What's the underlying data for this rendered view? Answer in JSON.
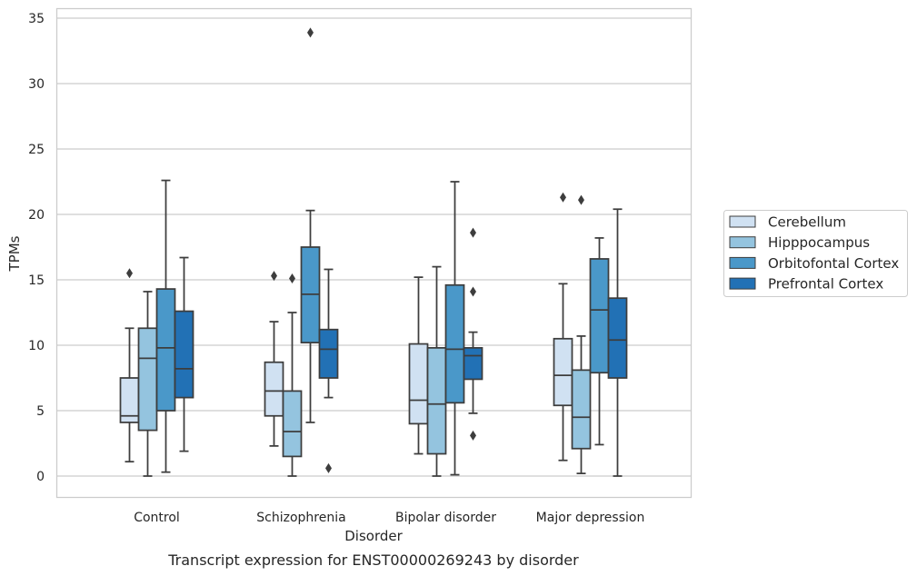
{
  "chart_data": {
    "type": "box",
    "title": "",
    "caption": "Transcript expression for ENST00000269243 by disorder",
    "xlabel": "Disorder",
    "ylabel": "TPMs",
    "ylim": [
      -1.6,
      35.7
    ],
    "yticks": [
      0,
      5,
      10,
      15,
      20,
      25,
      30,
      35
    ],
    "grid": "horizontal",
    "legend_position": "right",
    "categories": [
      "Control",
      "Schizophrenia",
      "Bipolar disorder",
      "Major depression"
    ],
    "series": [
      {
        "name": "Cerebellum",
        "color": "#d0e1f2",
        "boxes": [
          {
            "whislo": 1.1,
            "q1": 4.1,
            "med": 4.6,
            "q3": 7.5,
            "whishi": 11.3,
            "fliers": [
              15.5
            ]
          },
          {
            "whislo": 2.3,
            "q1": 4.6,
            "med": 6.5,
            "q3": 8.7,
            "whishi": 11.8,
            "fliers": [
              15.3
            ]
          },
          {
            "whislo": 1.7,
            "q1": 4.0,
            "med": 5.8,
            "q3": 10.1,
            "whishi": 15.2,
            "fliers": []
          },
          {
            "whislo": 1.2,
            "q1": 5.4,
            "med": 7.7,
            "q3": 10.5,
            "whishi": 14.7,
            "fliers": [
              21.3
            ]
          }
        ]
      },
      {
        "name": "Hipppocampus",
        "color": "#94c4df",
        "boxes": [
          {
            "whislo": 0.0,
            "q1": 3.5,
            "med": 9.0,
            "q3": 11.3,
            "whishi": 14.1,
            "fliers": []
          },
          {
            "whislo": 0.0,
            "q1": 1.5,
            "med": 3.4,
            "q3": 6.5,
            "whishi": 12.5,
            "fliers": [
              15.1
            ]
          },
          {
            "whislo": 0.0,
            "q1": 1.7,
            "med": 5.5,
            "q3": 9.8,
            "whishi": 16.0,
            "fliers": []
          },
          {
            "whislo": 0.2,
            "q1": 2.1,
            "med": 4.5,
            "q3": 8.1,
            "whishi": 10.7,
            "fliers": [
              21.1
            ]
          }
        ]
      },
      {
        "name": "Orbitofontal Cortex",
        "color": "#4a98c9",
        "boxes": [
          {
            "whislo": 0.3,
            "q1": 5.0,
            "med": 9.8,
            "q3": 14.3,
            "whishi": 22.6,
            "fliers": []
          },
          {
            "whislo": 4.1,
            "q1": 10.2,
            "med": 13.9,
            "q3": 17.5,
            "whishi": 20.3,
            "fliers": [
              33.9
            ]
          },
          {
            "whislo": 0.1,
            "q1": 5.6,
            "med": 9.7,
            "q3": 14.6,
            "whishi": 22.5,
            "fliers": []
          },
          {
            "whislo": 2.4,
            "q1": 7.9,
            "med": 12.7,
            "q3": 16.6,
            "whishi": 18.2,
            "fliers": []
          }
        ]
      },
      {
        "name": "Prefrontal Cortex",
        "color": "#2271b5",
        "boxes": [
          {
            "whislo": 1.9,
            "q1": 6.0,
            "med": 8.2,
            "q3": 12.6,
            "whishi": 16.7,
            "fliers": []
          },
          {
            "whislo": 6.0,
            "q1": 7.5,
            "med": 9.7,
            "q3": 11.2,
            "whishi": 15.8,
            "fliers": [
              0.6
            ]
          },
          {
            "whislo": 4.8,
            "q1": 7.4,
            "med": 9.2,
            "q3": 9.8,
            "whishi": 11.0,
            "fliers": [
              3.1,
              14.1,
              18.6
            ]
          },
          {
            "whislo": 0.0,
            "q1": 7.5,
            "med": 10.4,
            "q3": 13.6,
            "whishi": 20.4,
            "fliers": []
          }
        ]
      }
    ]
  }
}
